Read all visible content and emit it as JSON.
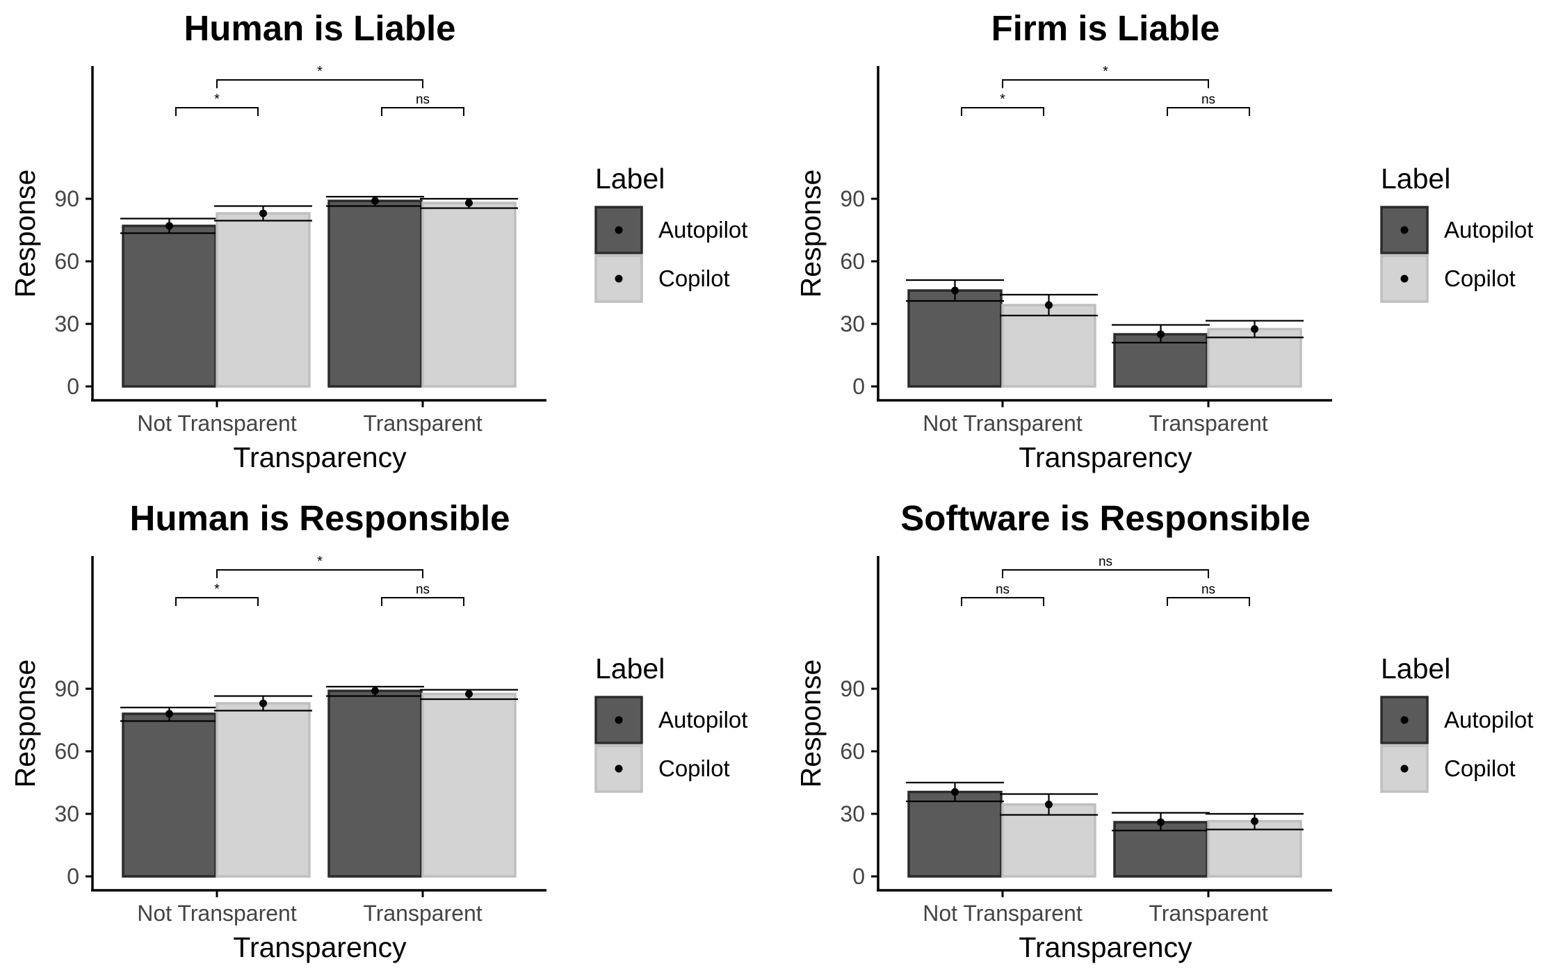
{
  "figure": {
    "layout": "2x2 grid"
  },
  "colors": {
    "autopilot_fill": "#5a5a5a",
    "autopilot_border": "#2b2b2b",
    "copilot_fill": "#d3d3d3",
    "copilot_border": "#bfbfbf",
    "axis": "#000000",
    "tick_text": "#444444",
    "text": "#000000"
  },
  "chart_data": [
    {
      "type": "bar",
      "title": "Human is Liable",
      "xlabel": "Transparency",
      "ylabel": "Response",
      "categories": [
        "Not Transparent",
        "Transparent"
      ],
      "ylim": [
        0,
        110
      ],
      "yticks": [
        "0",
        "30",
        "60",
        "90"
      ],
      "legend": {
        "title": "Label",
        "position": "right"
      },
      "series": [
        {
          "name": "Autopilot",
          "values": [
            77,
            89
          ],
          "ci_low": [
            73.5,
            86.5
          ],
          "ci_high": [
            80.5,
            91
          ]
        },
        {
          "name": "Copilot",
          "values": [
            83,
            88
          ],
          "ci_low": [
            79.5,
            85.5
          ],
          "ci_high": [
            86.5,
            90
          ]
        }
      ],
      "significance": [
        {
          "label": "*",
          "level": 1,
          "from": "Not Transparent",
          "to": "Transparent"
        },
        {
          "label": "*",
          "level": 2,
          "category": "Not Transparent"
        },
        {
          "label": "ns",
          "level": 2,
          "category": "Transparent"
        }
      ],
      "grid": false
    },
    {
      "type": "bar",
      "title": "Firm is Liable",
      "xlabel": "Transparency",
      "ylabel": "Response",
      "categories": [
        "Not Transparent",
        "Transparent"
      ],
      "ylim": [
        0,
        110
      ],
      "yticks": [
        "0",
        "30",
        "60",
        "90"
      ],
      "legend": {
        "title": "Label",
        "position": "right"
      },
      "series": [
        {
          "name": "Autopilot",
          "values": [
            46,
            25
          ],
          "ci_low": [
            41,
            21
          ],
          "ci_high": [
            51,
            29.5
          ]
        },
        {
          "name": "Copilot",
          "values": [
            39,
            27.5
          ],
          "ci_low": [
            34,
            23.5
          ],
          "ci_high": [
            44,
            31.5
          ]
        }
      ],
      "significance": [
        {
          "label": "*",
          "level": 1,
          "from": "Not Transparent",
          "to": "Transparent"
        },
        {
          "label": "*",
          "level": 2,
          "category": "Not Transparent"
        },
        {
          "label": "ns",
          "level": 2,
          "category": "Transparent"
        }
      ],
      "grid": false
    },
    {
      "type": "bar",
      "title": "Human is Responsible",
      "xlabel": "Transparency",
      "ylabel": "Response",
      "categories": [
        "Not Transparent",
        "Transparent"
      ],
      "ylim": [
        0,
        110
      ],
      "yticks": [
        "0",
        "30",
        "60",
        "90"
      ],
      "legend": {
        "title": "Label",
        "position": "right"
      },
      "series": [
        {
          "name": "Autopilot",
          "values": [
            78,
            89
          ],
          "ci_low": [
            74.5,
            86.5
          ],
          "ci_high": [
            81,
            91
          ]
        },
        {
          "name": "Copilot",
          "values": [
            83,
            87.5
          ],
          "ci_low": [
            79.5,
            85
          ],
          "ci_high": [
            86.5,
            89.5
          ]
        }
      ],
      "significance": [
        {
          "label": "*",
          "level": 1,
          "from": "Not Transparent",
          "to": "Transparent"
        },
        {
          "label": "*",
          "level": 2,
          "category": "Not Transparent"
        },
        {
          "label": "ns",
          "level": 2,
          "category": "Transparent"
        }
      ],
      "grid": false
    },
    {
      "type": "bar",
      "title": "Software is Responsible",
      "xlabel": "Transparency",
      "ylabel": "Response",
      "categories": [
        "Not Transparent",
        "Transparent"
      ],
      "ylim": [
        0,
        110
      ],
      "yticks": [
        "0",
        "30",
        "60",
        "90"
      ],
      "legend": {
        "title": "Label",
        "position": "right"
      },
      "series": [
        {
          "name": "Autopilot",
          "values": [
            40.5,
            26
          ],
          "ci_low": [
            36,
            22
          ],
          "ci_high": [
            45,
            30.5
          ]
        },
        {
          "name": "Copilot",
          "values": [
            34.5,
            26.5
          ],
          "ci_low": [
            29.5,
            22.5
          ],
          "ci_high": [
            39.5,
            30
          ]
        }
      ],
      "significance": [
        {
          "label": "ns",
          "level": 1,
          "from": "Not Transparent",
          "to": "Transparent"
        },
        {
          "label": "ns",
          "level": 2,
          "category": "Not Transparent"
        },
        {
          "label": "ns",
          "level": 2,
          "category": "Transparent"
        }
      ],
      "grid": false
    }
  ]
}
